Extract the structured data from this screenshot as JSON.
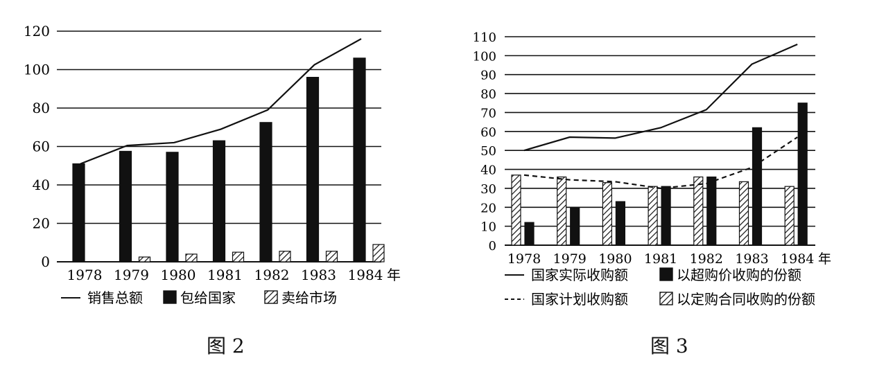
{
  "chart_data": [
    {
      "type": "bar",
      "caption": "图 2",
      "categories": [
        "1978",
        "1979",
        "1980",
        "1981",
        "1982",
        "1983",
        "1984"
      ],
      "x_unit": "年",
      "ylim": [
        0,
        120
      ],
      "yticks": [
        0,
        20,
        40,
        60,
        80,
        100,
        120
      ],
      "grid": true,
      "legend_position": "bottom",
      "series": [
        {
          "name": "销售总额",
          "kind": "line",
          "style": "solid",
          "values": [
            51,
            60.5,
            62,
            69,
            79,
            102.5,
            116
          ]
        },
        {
          "name": "包给国家",
          "kind": "bar",
          "fill": "solid",
          "values": [
            51,
            57.5,
            57,
            63,
            72.5,
            96,
            106
          ]
        },
        {
          "name": "卖给市场",
          "kind": "bar",
          "fill": "hatched",
          "values": [
            0,
            2.5,
            4,
            5,
            5.5,
            5.5,
            9
          ]
        }
      ]
    },
    {
      "type": "bar",
      "caption": "图 3",
      "categories": [
        "1978",
        "1979",
        "1980",
        "1981",
        "1982",
        "1983",
        "1984"
      ],
      "x_unit": "年",
      "ylim": [
        0,
        110
      ],
      "yticks": [
        0,
        10,
        20,
        30,
        40,
        50,
        60,
        70,
        80,
        90,
        100,
        110
      ],
      "grid": true,
      "legend_position": "bottom",
      "series": [
        {
          "name": "国家实际收购额",
          "kind": "line",
          "style": "solid",
          "values": [
            50,
            57,
            56.5,
            62,
            71.5,
            95.5,
            106
          ]
        },
        {
          "name": "以超购价收购的份额",
          "kind": "bar",
          "fill": "solid",
          "values": [
            12,
            20,
            23,
            31,
            36,
            62,
            75
          ]
        },
        {
          "name": "国家计划收购额",
          "kind": "line",
          "style": "dashed",
          "values": [
            37,
            34.5,
            33.5,
            30,
            32.5,
            41,
            57
          ]
        },
        {
          "name": "以定购合同收购的份额",
          "kind": "bar",
          "fill": "hatched",
          "values": [
            37,
            36,
            33,
            31,
            36,
            33.5,
            31
          ]
        }
      ]
    }
  ]
}
